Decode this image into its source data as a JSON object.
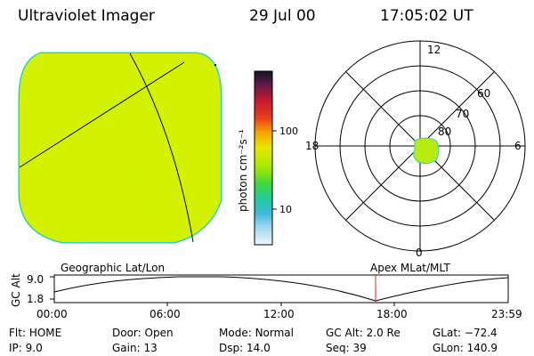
{
  "header": {
    "instrument": "Ultraviolet Imager",
    "date": "29 Jul 00",
    "time": "17:05:02 UT"
  },
  "colorbar": {
    "unit_label": "photon cm⁻²s⁻¹",
    "ticks": [
      "100",
      "10"
    ]
  },
  "polar_plot": {
    "hour_labels": [
      "12",
      "18",
      "6",
      "0"
    ],
    "lat_labels": [
      "60",
      "70",
      "80"
    ]
  },
  "timeline": {
    "left_label": "Geographic Lat/Lon",
    "right_label": "Apex MLat/MLT",
    "axis_label": "GC Alt",
    "y_ticks": [
      "9.0",
      "1.8"
    ],
    "x_ticks": [
      "00:00",
      "06:00",
      "12:00",
      "18:00",
      "23:59"
    ]
  },
  "status": {
    "row1": [
      {
        "label": "Flt:",
        "value": "HOME"
      },
      {
        "label": "Door:",
        "value": "Open"
      },
      {
        "label": "Mode:",
        "value": "Normal"
      },
      {
        "label": "GC Alt:",
        "value": "2.0 Re"
      },
      {
        "label": "GLat:",
        "value": "−72.4"
      }
    ],
    "row2": [
      {
        "label": "IP:",
        "value": "9.0"
      },
      {
        "label": "Gain:",
        "value": "13"
      },
      {
        "label": "Dsp:",
        "value": "14.0"
      },
      {
        "label": "Seq:",
        "value": "39"
      },
      {
        "label": "GLon:",
        "value": "140.9"
      }
    ]
  },
  "colors": {
    "disk_fill": "#d8f000",
    "disk_rim": "#2ad0c8",
    "marker": "#c83020",
    "polar_spot": "#b8ec10"
  }
}
